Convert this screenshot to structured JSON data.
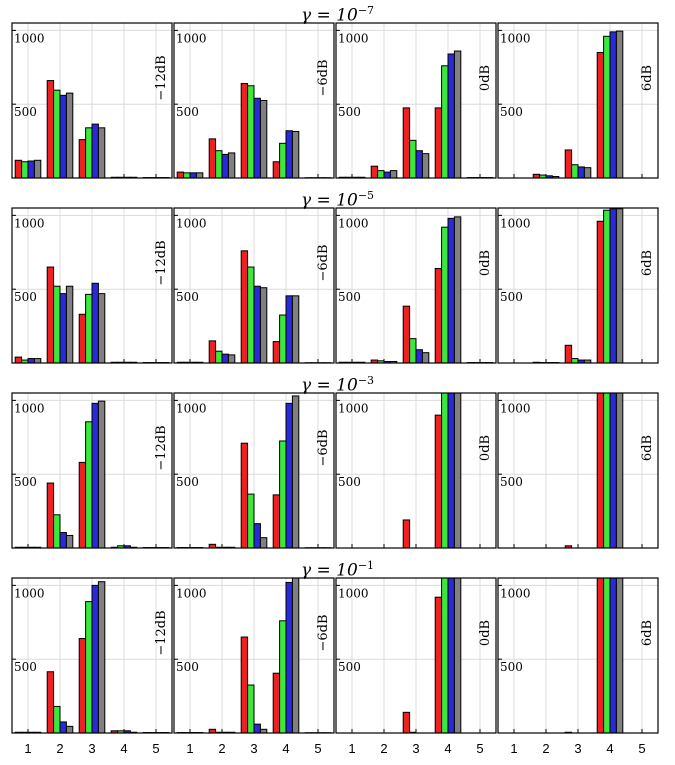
{
  "colors": {
    "red": "#ee2020",
    "green": "#3ce83c",
    "blue": "#2a2ad8",
    "gray": "#808080"
  },
  "chart_data": {
    "type": "bar",
    "x_ticks": [
      "1",
      "2",
      "3",
      "4",
      "5"
    ],
    "y_tick_labels": [
      "500",
      "1000"
    ],
    "ylim": [
      0,
      1050
    ],
    "grid": true,
    "rows": [
      {
        "title_base": "γ = 10",
        "title_exp": "−7",
        "panels": [
          {
            "label": "−12dB",
            "values": [
              [
                120,
                110,
                115,
                120
              ],
              [
                660,
                595,
                560,
                575
              ],
              [
                260,
                340,
                365,
                340
              ],
              [
                5,
                5,
                5,
                5
              ],
              [
                3,
                3,
                3,
                3
              ]
            ]
          },
          {
            "label": "−6dB",
            "values": [
              [
                40,
                35,
                35,
                35
              ],
              [
                265,
                185,
                160,
                170
              ],
              [
                640,
                625,
                540,
                525
              ],
              [
                110,
                235,
                320,
                315
              ],
              [
                2,
                2,
                2,
                2
              ]
            ]
          },
          {
            "label": "0dB",
            "values": [
              [
                5,
                5,
                5,
                5
              ],
              [
                80,
                50,
                40,
                50
              ],
              [
                475,
                255,
                185,
                165
              ],
              [
                475,
                760,
                840,
                860
              ],
              [
                3,
                3,
                3,
                3
              ]
            ]
          },
          {
            "label": "6dB",
            "values": [
              [
                0,
                0,
                0,
                0
              ],
              [
                25,
                20,
                15,
                10
              ],
              [
                190,
                90,
                75,
                70
              ],
              [
                850,
                960,
                990,
                995
              ],
              [
                0,
                0,
                0,
                0
              ]
            ]
          }
        ]
      },
      {
        "title_base": "γ = 10",
        "title_exp": "−5",
        "panels": [
          {
            "label": "−12dB",
            "values": [
              [
                40,
                20,
                30,
                30
              ],
              [
                650,
                520,
                470,
                520
              ],
              [
                330,
                465,
                540,
                470
              ],
              [
                5,
                5,
                5,
                5
              ],
              [
                3,
                3,
                3,
                3
              ]
            ]
          },
          {
            "label": "−6dB",
            "values": [
              [
                5,
                5,
                5,
                5
              ],
              [
                150,
                80,
                60,
                55
              ],
              [
                760,
                650,
                520,
                510
              ],
              [
                145,
                325,
                455,
                455
              ],
              [
                2,
                2,
                2,
                2
              ]
            ]
          },
          {
            "label": "0dB",
            "values": [
              [
                5,
                5,
                5,
                5
              ],
              [
                20,
                15,
                10,
                10
              ],
              [
                385,
                165,
                90,
                70
              ],
              [
                640,
                920,
                980,
                990
              ],
              [
                3,
                3,
                3,
                3
              ]
            ]
          },
          {
            "label": "6dB",
            "values": [
              [
                0,
                0,
                0,
                0
              ],
              [
                5,
                3,
                3,
                3
              ],
              [
                120,
                30,
                20,
                20
              ],
              [
                960,
                1035,
                1045,
                1045
              ],
              [
                0,
                0,
                0,
                0
              ]
            ]
          }
        ]
      },
      {
        "title_base": "γ = 10",
        "title_exp": "−3",
        "panels": [
          {
            "label": "−12dB",
            "values": [
              [
                5,
                5,
                5,
                5
              ],
              [
                440,
                225,
                105,
                85
              ],
              [
                580,
                855,
                980,
                995
              ],
              [
                5,
                15,
                15,
                5
              ],
              [
                3,
                3,
                3,
                3
              ]
            ]
          },
          {
            "label": "−6dB",
            "values": [
              [
                3,
                3,
                3,
                3
              ],
              [
                25,
                5,
                5,
                5
              ],
              [
                710,
                365,
                165,
                70
              ],
              [
                360,
                725,
                980,
                1030
              ],
              [
                2,
                2,
                2,
                2
              ]
            ]
          },
          {
            "label": "0dB",
            "values": [
              [
                0,
                0,
                0,
                0
              ],
              [
                0,
                0,
                0,
                0
              ],
              [
                190,
                0,
                0,
                0
              ],
              [
                900,
                1050,
                1050,
                1050
              ],
              [
                0,
                0,
                0,
                0
              ]
            ]
          },
          {
            "label": "6dB",
            "values": [
              [
                0,
                0,
                0,
                0
              ],
              [
                0,
                0,
                0,
                0
              ],
              [
                15,
                0,
                0,
                0
              ],
              [
                1050,
                1050,
                1050,
                1050
              ],
              [
                0,
                0,
                0,
                0
              ]
            ]
          }
        ]
      },
      {
        "title_base": "γ = 10",
        "title_exp": "−1",
        "panels": [
          {
            "label": "−12dB",
            "values": [
              [
                5,
                5,
                5,
                5
              ],
              [
                415,
                180,
                75,
                45
              ],
              [
                640,
                890,
                1000,
                1025
              ],
              [
                15,
                15,
                15,
                5
              ],
              [
                3,
                3,
                3,
                3
              ]
            ]
          },
          {
            "label": "−6dB",
            "values": [
              [
                3,
                3,
                3,
                3
              ],
              [
                25,
                5,
                5,
                5
              ],
              [
                650,
                325,
                60,
                25
              ],
              [
                405,
                760,
                1020,
                1050
              ],
              [
                2,
                2,
                2,
                2
              ]
            ]
          },
          {
            "label": "0dB",
            "values": [
              [
                0,
                0,
                0,
                0
              ],
              [
                0,
                0,
                0,
                0
              ],
              [
                140,
                5,
                0,
                0
              ],
              [
                920,
                1050,
                1050,
                1050
              ],
              [
                0,
                0,
                0,
                0
              ]
            ]
          },
          {
            "label": "6dB",
            "values": [
              [
                0,
                0,
                0,
                0
              ],
              [
                0,
                0,
                0,
                0
              ],
              [
                5,
                0,
                0,
                0
              ],
              [
                1050,
                1050,
                1050,
                1050
              ],
              [
                0,
                0,
                0,
                0
              ]
            ]
          }
        ]
      }
    ]
  }
}
